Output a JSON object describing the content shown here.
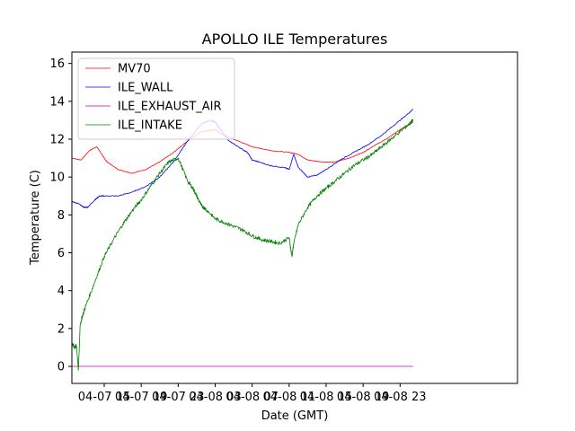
{
  "chart_data": {
    "type": "line",
    "title": "APOLLO ILE Temperatures",
    "xlabel": "Date (GMT)",
    "ylabel": "Temperature (C)",
    "xlim": [
      11.5,
      59.7
    ],
    "ylim": [
      -0.9,
      16.6
    ],
    "x_unit": "hours since 04-07 00:00 GMT",
    "yticks": [
      0,
      2,
      4,
      6,
      8,
      10,
      12,
      14,
      16
    ],
    "xticks": [
      {
        "value": 15,
        "label": "04-07 15"
      },
      {
        "value": 19,
        "label": "04-07 19"
      },
      {
        "value": 23,
        "label": "04-07 23"
      },
      {
        "value": 27,
        "label": "04-08 03"
      },
      {
        "value": 31,
        "label": "04-08 07"
      },
      {
        "value": 35,
        "label": "04-08 11"
      },
      {
        "value": 39,
        "label": "04-08 15"
      },
      {
        "value": 43,
        "label": "04-08 19"
      },
      {
        "value": 47,
        "label": "04-08 23"
      }
    ],
    "grid": false,
    "legend_position": "top-left",
    "series": [
      {
        "name": "MV70",
        "color": "#ff0000",
        "x": [
          11.5,
          12.5,
          13.4,
          14.2,
          15.0,
          15.3,
          16.5,
          18.0,
          19.5,
          21.0,
          22.5,
          24.0,
          25.5,
          27.0,
          28.0,
          29.5,
          31.0,
          33.0,
          35.0,
          36.0,
          37.0,
          38.5,
          40.0,
          41.5,
          43.0,
          44.0,
          45.5,
          47.0,
          48.0,
          48.4
        ],
        "y": [
          11.0,
          10.9,
          11.4,
          11.6,
          11.0,
          10.8,
          10.4,
          10.2,
          10.4,
          10.8,
          11.3,
          11.9,
          12.4,
          12.5,
          12.2,
          11.9,
          11.6,
          11.4,
          11.3,
          11.2,
          10.9,
          10.8,
          10.8,
          11.0,
          11.3,
          11.6,
          12.0,
          12.5,
          12.8,
          12.9
        ]
      },
      {
        "name": "ILE_WALL",
        "color": "#0000ff",
        "x": [
          11.5,
          12.2,
          12.8,
          13.2,
          14.0,
          14.5,
          15.0,
          16.5,
          18.0,
          19.5,
          21.0,
          22.5,
          24.0,
          25.5,
          26.5,
          27.0,
          27.6,
          28.5,
          29.5,
          30.5,
          31.0,
          31.7,
          33.0,
          34.5,
          35.0,
          35.5,
          36.0,
          37.0,
          38.0,
          39.0,
          40.5,
          42.0,
          43.5,
          45.0,
          46.5,
          48.0,
          48.4
        ],
        "y": [
          8.7,
          8.6,
          8.4,
          8.4,
          8.8,
          9.0,
          9.0,
          9.0,
          9.2,
          9.5,
          10.0,
          10.8,
          11.9,
          12.8,
          13.0,
          12.9,
          12.5,
          11.9,
          11.6,
          11.3,
          10.9,
          10.8,
          10.6,
          10.5,
          10.4,
          11.2,
          10.5,
          10.0,
          10.1,
          10.4,
          10.9,
          11.3,
          11.7,
          12.2,
          12.8,
          13.4,
          13.6
        ]
      },
      {
        "name": "ILE_EXHAUST_AIR",
        "color": "#bf00bf",
        "x": [
          11.5,
          48.4
        ],
        "y": [
          0.0,
          0.0
        ]
      },
      {
        "name": "ILE_INTAKE",
        "color": "#008000",
        "x": [
          11.5,
          11.8,
          12.0,
          12.2,
          12.4,
          12.6,
          13.0,
          14.0,
          15.0,
          16.0,
          17.0,
          18.0,
          19.0,
          20.0,
          21.0,
          22.0,
          23.0,
          24.0,
          24.6,
          25.0,
          25.5,
          26.0,
          27.0,
          28.0,
          29.0,
          30.0,
          31.0,
          32.0,
          33.0,
          34.0,
          35.0,
          35.3,
          35.5,
          36.0,
          37.0,
          38.0,
          39.0,
          40.0,
          41.0,
          42.0,
          43.0,
          44.0,
          45.0,
          46.0,
          47.0,
          48.0,
          48.4
        ],
        "y": [
          1.2,
          1.0,
          1.1,
          -0.2,
          2.2,
          2.6,
          3.2,
          4.5,
          5.8,
          6.7,
          7.5,
          8.2,
          8.8,
          9.5,
          10.2,
          10.8,
          11.0,
          9.8,
          9.4,
          9.0,
          8.5,
          8.3,
          7.8,
          7.6,
          7.4,
          7.2,
          6.9,
          6.7,
          6.6,
          6.5,
          6.8,
          5.8,
          6.5,
          7.5,
          8.4,
          9.0,
          9.4,
          9.8,
          10.2,
          10.6,
          10.9,
          11.2,
          11.6,
          12.0,
          12.4,
          12.8,
          13.0
        ]
      }
    ]
  }
}
